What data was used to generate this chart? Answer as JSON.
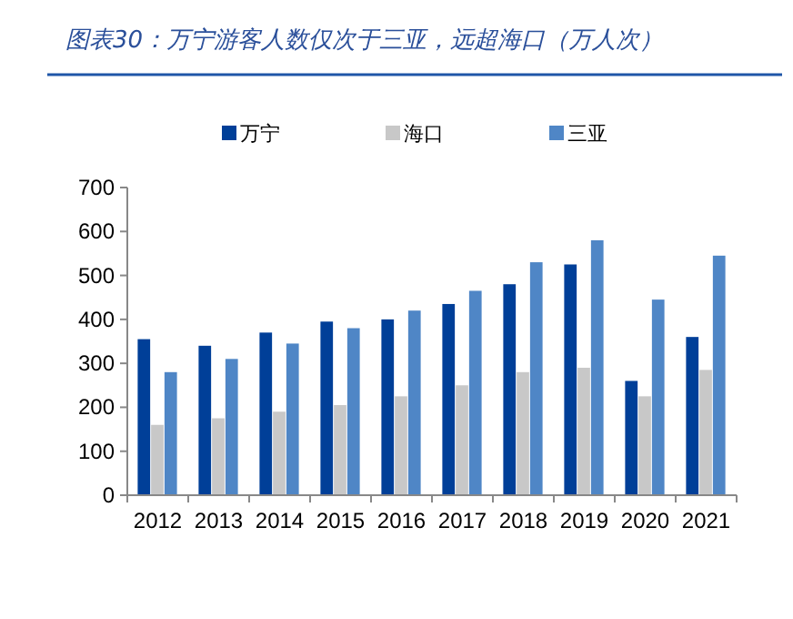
{
  "chart_data": {
    "type": "bar",
    "title": "图表30：万宁游客人数仅次于三亚，远超海口（万人次）",
    "categories": [
      "2012",
      "2013",
      "2014",
      "2015",
      "2016",
      "2017",
      "2018",
      "2019",
      "2020",
      "2021"
    ],
    "series": [
      {
        "name": "万宁",
        "color": "#003f98",
        "values": [
          355,
          340,
          370,
          395,
          400,
          435,
          480,
          525,
          260,
          360
        ]
      },
      {
        "name": "海口",
        "color": "#c8c8c8",
        "values": [
          160,
          175,
          190,
          205,
          225,
          250,
          280,
          290,
          225,
          285
        ]
      },
      {
        "name": "三亚",
        "color": "#4f86c6",
        "values": [
          280,
          310,
          345,
          380,
          420,
          465,
          530,
          580,
          445,
          545
        ]
      }
    ],
    "ylim": [
      0,
      700
    ],
    "yticks": [
      0,
      100,
      200,
      300,
      400,
      500,
      600,
      700
    ],
    "legend": "top",
    "grid": false
  }
}
